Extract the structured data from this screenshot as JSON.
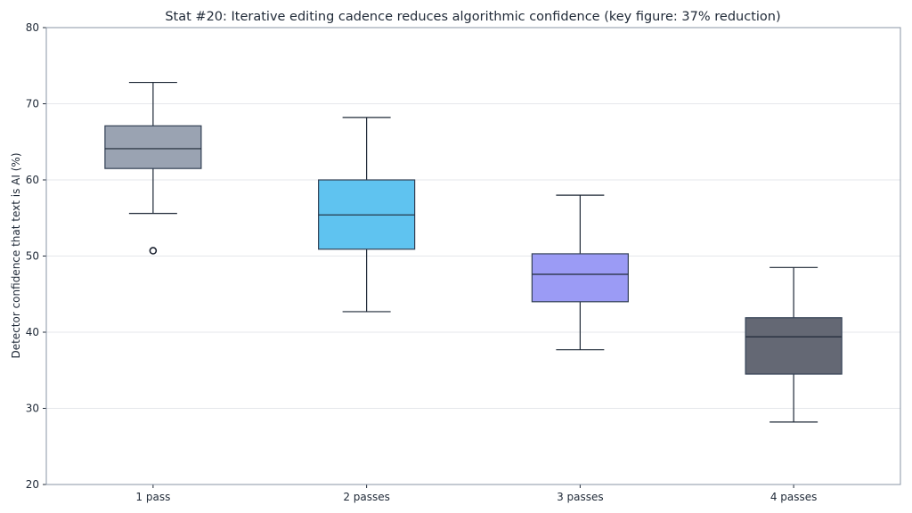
{
  "chart_data": {
    "type": "box",
    "title": "Stat #20: Iterative editing cadence reduces algorithmic confidence (key figure: 37% reduction)",
    "xlabel": "",
    "ylabel": "Detector confidence that text is AI (%)",
    "ylim": [
      20,
      80
    ],
    "yticks": [
      20,
      30,
      40,
      50,
      60,
      70,
      80
    ],
    "grid": true,
    "categories": [
      "1 pass",
      "2 passes",
      "3 passes",
      "4 passes"
    ],
    "boxes": [
      {
        "category": "1 pass",
        "whislo": 55.6,
        "q1": 61.5,
        "med": 64.1,
        "q3": 67.1,
        "whishi": 72.8,
        "fliers": [
          50.7
        ],
        "color": "#9aa3b2"
      },
      {
        "category": "2 passes",
        "whislo": 42.7,
        "q1": 50.9,
        "med": 55.4,
        "q3": 60.0,
        "whishi": 68.2,
        "fliers": [],
        "color": "#5fc3f0"
      },
      {
        "category": "3 passes",
        "whislo": 37.7,
        "q1": 44.0,
        "med": 47.6,
        "q3": 50.3,
        "whishi": 58.0,
        "fliers": [],
        "color": "#9b9bf5"
      },
      {
        "category": "4 passes",
        "whislo": 28.2,
        "q1": 34.5,
        "med": 39.4,
        "q3": 41.9,
        "whishi": 48.5,
        "fliers": [],
        "color": "#646874"
      }
    ]
  }
}
